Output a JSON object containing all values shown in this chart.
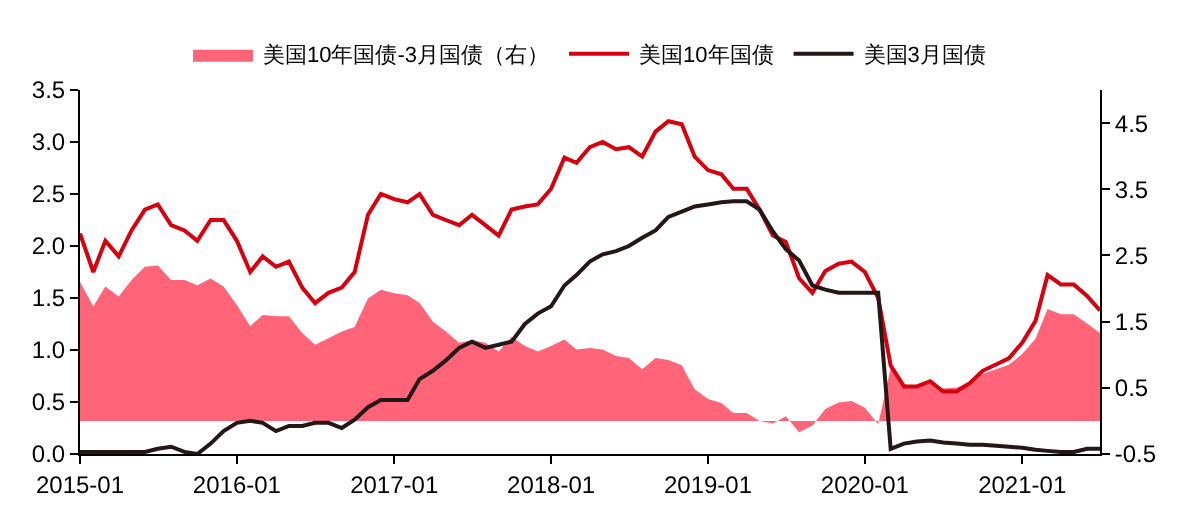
{
  "chart_data": {
    "type": "line",
    "x": [
      "2015-01",
      "2015-02",
      "2015-03",
      "2015-04",
      "2015-05",
      "2015-06",
      "2015-07",
      "2015-08",
      "2015-09",
      "2015-10",
      "2015-11",
      "2015-12",
      "2016-01",
      "2016-02",
      "2016-03",
      "2016-04",
      "2016-05",
      "2016-06",
      "2016-07",
      "2016-08",
      "2016-09",
      "2016-10",
      "2016-11",
      "2016-12",
      "2017-01",
      "2017-02",
      "2017-03",
      "2017-04",
      "2017-05",
      "2017-06",
      "2017-07",
      "2017-08",
      "2017-09",
      "2017-10",
      "2017-11",
      "2017-12",
      "2018-01",
      "2018-02",
      "2018-03",
      "2018-04",
      "2018-05",
      "2018-06",
      "2018-07",
      "2018-08",
      "2018-09",
      "2018-10",
      "2018-11",
      "2018-12",
      "2019-01",
      "2019-02",
      "2019-03",
      "2019-04",
      "2019-05",
      "2019-06",
      "2019-07",
      "2019-08",
      "2019-09",
      "2019-10",
      "2019-11",
      "2019-12",
      "2020-01",
      "2020-02",
      "2020-03",
      "2020-04",
      "2020-05",
      "2020-06",
      "2020-07",
      "2020-08",
      "2020-09",
      "2020-10",
      "2020-11",
      "2020-12",
      "2021-01",
      "2021-02",
      "2021-03",
      "2021-04",
      "2021-05",
      "2021-06",
      "2021-07"
    ],
    "series": [
      {
        "name": "美国10年国债-3月国债（右）",
        "type": "area",
        "axis": "y2",
        "color": "#ff6478",
        "values": [
          2.1,
          1.73,
          2.03,
          1.88,
          2.13,
          2.33,
          2.35,
          2.13,
          2.13,
          2.05,
          2.15,
          2.03,
          1.75,
          1.43,
          1.6,
          1.58,
          1.58,
          1.33,
          1.15,
          1.25,
          1.35,
          1.42,
          1.85,
          1.98,
          1.93,
          1.9,
          1.78,
          1.5,
          1.35,
          1.18,
          1.22,
          1.18,
          1.05,
          1.27,
          1.13,
          1.05,
          1.13,
          1.23,
          1.08,
          1.1,
          1.08,
          0.98,
          0.95,
          0.78,
          0.95,
          0.92,
          0.84,
          0.48,
          0.33,
          0.27,
          0.12,
          0.12,
          0.0,
          -0.04,
          0.07,
          -0.17,
          -0.07,
          0.18,
          0.28,
          0.3,
          0.2,
          -0.05,
          0.8,
          0.55,
          0.53,
          0.57,
          0.49,
          0.5,
          0.59,
          0.71,
          0.78,
          0.85,
          1.01,
          1.24,
          1.69,
          1.61,
          1.61,
          1.47,
          1.33
        ]
      },
      {
        "name": "美国10年国债",
        "color": "#d7000f",
        "values": [
          2.12,
          1.75,
          2.05,
          1.9,
          2.15,
          2.35,
          2.4,
          2.2,
          2.15,
          2.05,
          2.25,
          2.25,
          2.05,
          1.75,
          1.9,
          1.8,
          1.85,
          1.6,
          1.45,
          1.55,
          1.6,
          1.75,
          2.3,
          2.5,
          2.45,
          2.42,
          2.5,
          2.3,
          2.25,
          2.2,
          2.3,
          2.2,
          2.1,
          2.35,
          2.38,
          2.4,
          2.55,
          2.85,
          2.8,
          2.95,
          3.0,
          2.93,
          2.95,
          2.86,
          3.1,
          3.2,
          3.17,
          2.86,
          2.73,
          2.69,
          2.55,
          2.55,
          2.35,
          2.1,
          2.04,
          1.69,
          1.55,
          1.76,
          1.83,
          1.85,
          1.75,
          1.5,
          0.85,
          0.65,
          0.65,
          0.7,
          0.6,
          0.6,
          0.68,
          0.8,
          0.86,
          0.92,
          1.07,
          1.28,
          1.72,
          1.63,
          1.63,
          1.52,
          1.38
        ]
      },
      {
        "name": "美国3月国债",
        "color": "#231815",
        "values": [
          0.02,
          0.02,
          0.02,
          0.02,
          0.02,
          0.02,
          0.05,
          0.07,
          0.02,
          0.0,
          0.1,
          0.22,
          0.3,
          0.32,
          0.3,
          0.22,
          0.27,
          0.27,
          0.3,
          0.3,
          0.25,
          0.33,
          0.45,
          0.52,
          0.52,
          0.52,
          0.72,
          0.8,
          0.9,
          1.02,
          1.08,
          1.02,
          1.05,
          1.08,
          1.25,
          1.35,
          1.42,
          1.62,
          1.72,
          1.85,
          1.92,
          1.95,
          2.0,
          2.08,
          2.15,
          2.28,
          2.33,
          2.38,
          2.4,
          2.42,
          2.43,
          2.43,
          2.35,
          2.14,
          1.97,
          1.86,
          1.62,
          1.58,
          1.55,
          1.55,
          1.55,
          1.55,
          0.05,
          0.1,
          0.12,
          0.13,
          0.11,
          0.1,
          0.09,
          0.09,
          0.08,
          0.07,
          0.06,
          0.04,
          0.03,
          0.02,
          0.02,
          0.05,
          0.05
        ]
      }
    ],
    "xlim": [
      "2015-01",
      "2021-07"
    ],
    "xticks": [
      "2015-01",
      "2016-01",
      "2017-01",
      "2018-01",
      "2019-01",
      "2020-01",
      "2021-01"
    ],
    "ylim": [
      0,
      3.5
    ],
    "yticks": [
      {
        "value": 0,
        "label": "0.0"
      },
      0.5,
      {
        "value": 1,
        "label": "1.0"
      },
      1.5,
      {
        "value": 2,
        "label": "2.0"
      },
      2.5,
      {
        "value": 3,
        "label": "3.0"
      },
      3.5
    ],
    "y2lim": [
      -0.5,
      5.0
    ],
    "y2ticks": [
      -0.5,
      0.5,
      1.5,
      2.5,
      3.5,
      4.5
    ],
    "legend": "top"
  }
}
